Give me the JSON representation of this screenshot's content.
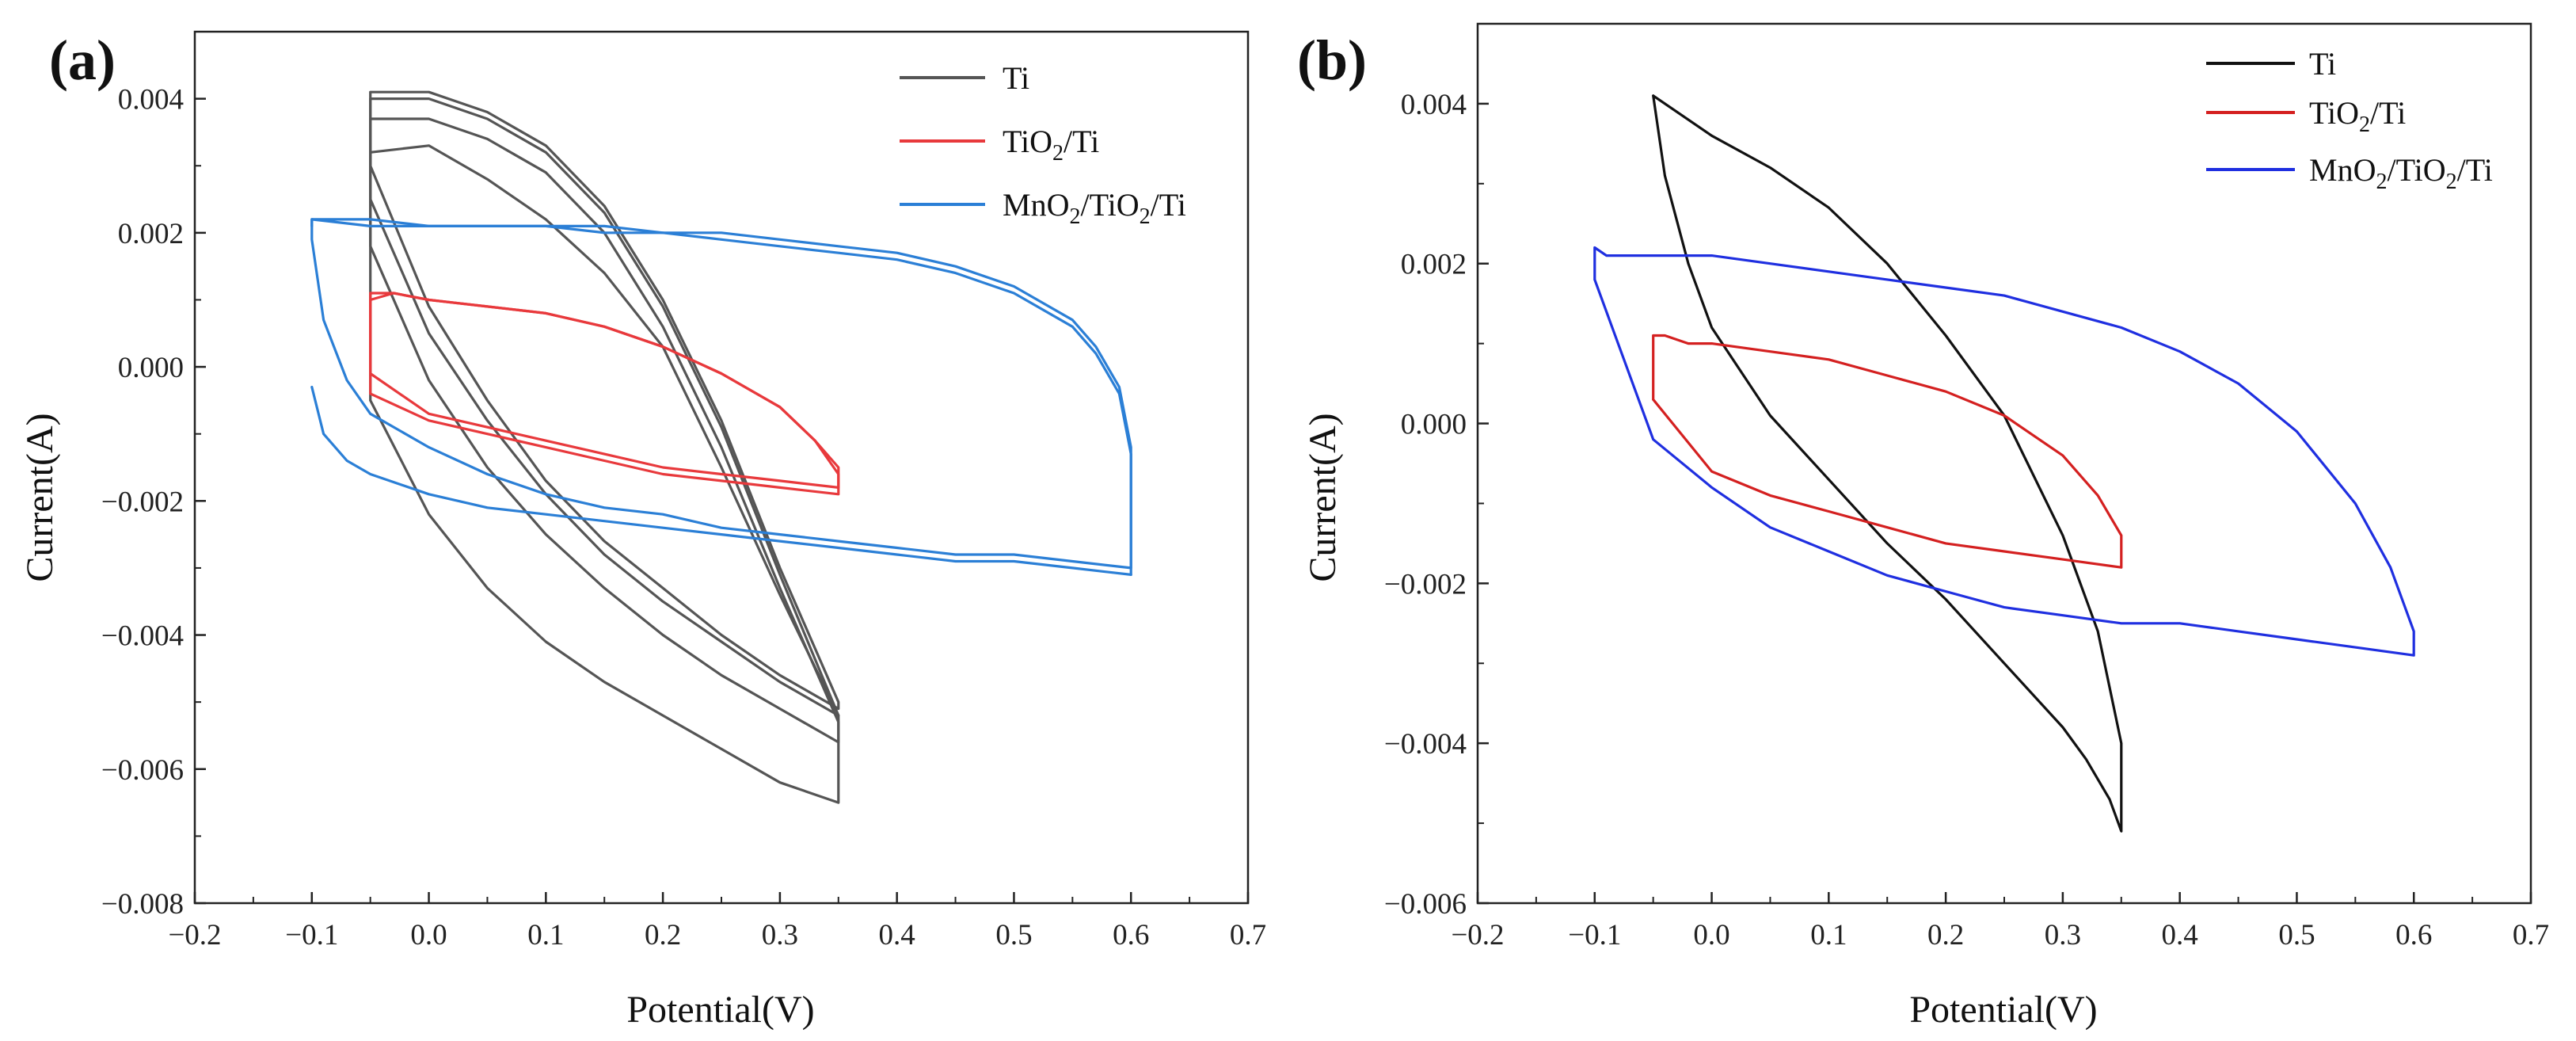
{
  "panels": [
    {
      "panel_label": "(a)",
      "legend": [
        {
          "main": "Ti",
          "sub": "",
          "after": "",
          "sub2": "",
          "after2": "",
          "color": "#555555"
        },
        {
          "main": "TiO",
          "sub": "2",
          "after": "/Ti",
          "sub2": "",
          "after2": "",
          "color": "#e8393c"
        },
        {
          "main": "MnO",
          "sub": "2",
          "after": "/TiO",
          "sub2": "2",
          "after2": "/Ti",
          "color": "#2b7fd6"
        }
      ]
    },
    {
      "panel_label": "(b)",
      "legend": [
        {
          "main": "Ti",
          "sub": "",
          "after": "",
          "sub2": "",
          "after2": "",
          "color": "#111111"
        },
        {
          "main": "TiO",
          "sub": "2",
          "after": "/Ti",
          "sub2": "",
          "after2": "",
          "color": "#d42020"
        },
        {
          "main": "MnO",
          "sub": "2",
          "after": "/TiO",
          "sub2": "2",
          "after2": "/Ti",
          "color": "#1f2fe0"
        }
      ]
    }
  ],
  "chart_data": [
    {
      "type": "line",
      "panel": "(a)",
      "xlabel": "Potential(V)",
      "ylabel": "Current(A)",
      "xlim": [
        -0.2,
        0.7
      ],
      "ylim": [
        -0.008,
        0.005
      ],
      "xticks": [
        -0.2,
        -0.1,
        0.0,
        0.1,
        0.2,
        0.3,
        0.4,
        0.5,
        0.6,
        0.7
      ],
      "xtick_labels": [
        "−0.2",
        "−0.1",
        "0.0",
        "0.1",
        "0.2",
        "0.3",
        "0.4",
        "0.5",
        "0.6",
        "0.7"
      ],
      "yticks": [
        -0.008,
        -0.006,
        -0.004,
        -0.002,
        0.0,
        0.002,
        0.004
      ],
      "ytick_labels": [
        "−0.008",
        "−0.006",
        "−0.004",
        "−0.002",
        "0.000",
        "0.002",
        "0.004"
      ],
      "legend_position": "top-right",
      "series": [
        {
          "name": "Ti",
          "color": "#555555",
          "cycles": [
            {
              "x": [
                -0.05,
                0.0,
                0.05,
                0.1,
                0.15,
                0.2,
                0.25,
                0.3,
                0.35,
                0.35,
                0.3,
                0.25,
                0.2,
                0.15,
                0.1,
                0.05,
                0.0,
                -0.05,
                -0.05
              ],
              "y": [
                -0.0005,
                -0.0022,
                -0.0033,
                -0.0041,
                -0.0047,
                -0.0052,
                -0.0057,
                -0.0062,
                -0.0065,
                -0.0052,
                -0.0034,
                -0.0015,
                0.0003,
                0.0014,
                0.0022,
                0.0028,
                0.0033,
                0.0032,
                -0.0005
              ]
            },
            {
              "x": [
                -0.05,
                0.0,
                0.05,
                0.1,
                0.15,
                0.2,
                0.25,
                0.3,
                0.35,
                0.35,
                0.3,
                0.25,
                0.2,
                0.15,
                0.1,
                0.05,
                0.0,
                -0.05,
                -0.05
              ],
              "y": [
                0.0018,
                -0.0002,
                -0.0015,
                -0.0025,
                -0.0033,
                -0.004,
                -0.0046,
                -0.0051,
                -0.0056,
                -0.0053,
                -0.0033,
                -0.0012,
                0.0006,
                0.002,
                0.0029,
                0.0034,
                0.0037,
                0.0037,
                0.0018
              ]
            },
            {
              "x": [
                -0.05,
                0.0,
                0.05,
                0.1,
                0.15,
                0.2,
                0.25,
                0.3,
                0.35,
                0.35,
                0.3,
                0.25,
                0.2,
                0.15,
                0.1,
                0.05,
                0.0,
                -0.05,
                -0.05
              ],
              "y": [
                0.0025,
                0.0005,
                -0.0008,
                -0.0019,
                -0.0028,
                -0.0035,
                -0.0041,
                -0.0047,
                -0.0052,
                -0.0052,
                -0.0031,
                -0.0009,
                0.0009,
                0.0023,
                0.0032,
                0.0037,
                0.004,
                0.004,
                0.0025
              ]
            },
            {
              "x": [
                -0.05,
                0.0,
                0.05,
                0.1,
                0.15,
                0.2,
                0.25,
                0.3,
                0.35,
                0.35,
                0.3,
                0.25,
                0.2,
                0.15,
                0.1,
                0.05,
                0.0,
                -0.05,
                -0.05
              ],
              "y": [
                0.003,
                0.0009,
                -0.0005,
                -0.0017,
                -0.0026,
                -0.0033,
                -0.004,
                -0.0046,
                -0.0051,
                -0.005,
                -0.003,
                -0.0008,
                0.001,
                0.0024,
                0.0033,
                0.0038,
                0.0041,
                0.0041,
                0.003
              ]
            }
          ]
        },
        {
          "name": "TiO2/Ti",
          "color": "#e8393c",
          "cycles": [
            {
              "x": [
                -0.05,
                -0.05,
                -0.03,
                0.0,
                0.05,
                0.1,
                0.15,
                0.2,
                0.25,
                0.3,
                0.33,
                0.35,
                0.35,
                0.3,
                0.25,
                0.2,
                0.15,
                0.1,
                0.05,
                0.0,
                -0.05
              ],
              "y": [
                -0.0004,
                0.001,
                0.0011,
                0.001,
                0.0009,
                0.0008,
                0.0006,
                0.0003,
                -0.0001,
                -0.0006,
                -0.0011,
                -0.0016,
                -0.0019,
                -0.0018,
                -0.0017,
                -0.0016,
                -0.0014,
                -0.0012,
                -0.001,
                -0.0008,
                -0.0004
              ]
            },
            {
              "x": [
                -0.05,
                -0.05,
                -0.03,
                0.0,
                0.05,
                0.1,
                0.15,
                0.2,
                0.25,
                0.3,
                0.33,
                0.35,
                0.35,
                0.3,
                0.25,
                0.2,
                0.15,
                0.1,
                0.05,
                0.0,
                -0.05
              ],
              "y": [
                -0.0001,
                0.0011,
                0.0011,
                0.001,
                0.0009,
                0.0008,
                0.0006,
                0.0003,
                -0.0001,
                -0.0006,
                -0.0011,
                -0.0015,
                -0.0018,
                -0.0017,
                -0.0016,
                -0.0015,
                -0.0013,
                -0.0011,
                -0.0009,
                -0.0007,
                -0.0001
              ]
            }
          ]
        },
        {
          "name": "MnO2/TiO2/Ti",
          "color": "#2b7fd6",
          "cycles": [
            {
              "x": [
                -0.1,
                -0.09,
                -0.07,
                -0.05,
                0.0,
                0.05,
                0.1,
                0.15,
                0.2,
                0.25,
                0.3,
                0.35,
                0.4,
                0.45,
                0.5,
                0.55,
                0.6
              ],
              "y": [
                -0.0003,
                -0.001,
                -0.0014,
                -0.0016,
                -0.0019,
                -0.0021,
                -0.0022,
                -0.0023,
                -0.0024,
                -0.0025,
                -0.0026,
                -0.0027,
                -0.0028,
                -0.0029,
                -0.0029,
                -0.003,
                -0.0031
              ]
            },
            {
              "x": [
                0.6,
                0.6,
                0.59,
                0.57,
                0.55,
                0.5,
                0.45,
                0.4,
                0.35,
                0.3,
                0.25,
                0.2,
                0.15,
                0.1,
                0.05,
                0.0,
                -0.05,
                -0.1,
                -0.1,
                -0.09,
                -0.07,
                -0.05,
                0.0,
                0.05,
                0.1,
                0.15,
                0.2,
                0.25,
                0.3,
                0.35,
                0.4,
                0.45,
                0.5,
                0.55,
                0.6
              ],
              "y": [
                -0.003,
                -0.0012,
                -0.0003,
                0.0003,
                0.0007,
                0.0012,
                0.0015,
                0.0017,
                0.0018,
                0.0019,
                0.002,
                0.002,
                0.0021,
                0.0021,
                0.0021,
                0.0021,
                0.0022,
                0.0022,
                0.0019,
                0.0007,
                -0.0002,
                -0.0007,
                -0.0012,
                -0.0016,
                -0.0019,
                -0.0021,
                -0.0022,
                -0.0024,
                -0.0025,
                -0.0026,
                -0.0027,
                -0.0028,
                -0.0028,
                -0.0029,
                -0.003
              ]
            },
            {
              "x": [
                0.6,
                0.6,
                0.59,
                0.57,
                0.55,
                0.5,
                0.45,
                0.4,
                0.35,
                0.3,
                0.25,
                0.2,
                0.15,
                0.1,
                0.05,
                0.0,
                -0.05,
                -0.1,
                -0.1
              ],
              "y": [
                -0.0031,
                -0.0013,
                -0.0004,
                0.0002,
                0.0006,
                0.0011,
                0.0014,
                0.0016,
                0.0017,
                0.0018,
                0.0019,
                0.002,
                0.002,
                0.0021,
                0.0021,
                0.0021,
                0.0021,
                0.0022,
                0.0021
              ]
            }
          ]
        }
      ]
    },
    {
      "type": "line",
      "panel": "(b)",
      "xlabel": "Potential(V)",
      "ylabel": "Current(A)",
      "xlim": [
        -0.2,
        0.7
      ],
      "ylim": [
        -0.006,
        0.005
      ],
      "xticks": [
        -0.2,
        -0.1,
        0.0,
        0.1,
        0.2,
        0.3,
        0.4,
        0.5,
        0.6,
        0.7
      ],
      "xtick_labels": [
        "−0.2",
        "−0.1",
        "0.0",
        "0.1",
        "0.2",
        "0.3",
        "0.4",
        "0.5",
        "0.6",
        "0.7"
      ],
      "yticks": [
        -0.006,
        -0.004,
        -0.002,
        0.0,
        0.002,
        0.004
      ],
      "ytick_labels": [
        "−0.006",
        "−0.004",
        "−0.002",
        "0.000",
        "0.002",
        "0.004"
      ],
      "legend_position": "top-right",
      "series": [
        {
          "name": "Ti",
          "color": "#111111",
          "cycles": [
            {
              "x": [
                -0.05,
                0.0,
                0.05,
                0.1,
                0.15,
                0.2,
                0.25,
                0.3,
                0.33,
                0.35,
                0.35,
                0.34,
                0.32,
                0.3,
                0.25,
                0.2,
                0.15,
                0.1,
                0.05,
                0.0,
                -0.02,
                -0.04,
                -0.05
              ],
              "y": [
                0.0041,
                0.0036,
                0.0032,
                0.0027,
                0.002,
                0.0011,
                0.0001,
                -0.0014,
                -0.0026,
                -0.004,
                -0.0051,
                -0.0047,
                -0.0042,
                -0.0038,
                -0.003,
                -0.0022,
                -0.0015,
                -0.0007,
                0.0001,
                0.0012,
                0.002,
                0.0031,
                0.0041
              ]
            }
          ]
        },
        {
          "name": "TiO2/Ti",
          "color": "#d42020",
          "cycles": [
            {
              "x": [
                -0.05,
                -0.05,
                -0.04,
                -0.02,
                0.0,
                0.05,
                0.1,
                0.15,
                0.2,
                0.25,
                0.3,
                0.33,
                0.35,
                0.35,
                0.3,
                0.25,
                0.2,
                0.15,
                0.1,
                0.05,
                0.0,
                -0.05
              ],
              "y": [
                0.0003,
                0.0011,
                0.0011,
                0.001,
                0.001,
                0.0009,
                0.0008,
                0.0006,
                0.0004,
                0.0001,
                -0.0004,
                -0.0009,
                -0.0014,
                -0.0018,
                -0.0017,
                -0.0016,
                -0.0015,
                -0.0013,
                -0.0011,
                -0.0009,
                -0.0006,
                0.0003
              ]
            }
          ]
        },
        {
          "name": "MnO2/TiO2/Ti",
          "color": "#1f2fe0",
          "cycles": [
            {
              "x": [
                -0.1,
                -0.1,
                -0.09,
                -0.07,
                -0.05,
                0.0,
                0.05,
                0.1,
                0.15,
                0.2,
                0.25,
                0.3,
                0.35,
                0.4,
                0.45,
                0.5,
                0.55,
                0.58,
                0.6,
                0.6,
                0.55,
                0.5,
                0.45,
                0.4,
                0.35,
                0.3,
                0.25,
                0.2,
                0.15,
                0.1,
                0.05,
                0.0,
                -0.05,
                -0.1
              ],
              "y": [
                0.0018,
                0.0022,
                0.0021,
                0.0021,
                0.0021,
                0.0021,
                0.002,
                0.0019,
                0.0018,
                0.0017,
                0.0016,
                0.0014,
                0.0012,
                0.0009,
                0.0005,
                -0.0001,
                -0.001,
                -0.0018,
                -0.0026,
                -0.0029,
                -0.0028,
                -0.0027,
                -0.0026,
                -0.0025,
                -0.0025,
                -0.0024,
                -0.0023,
                -0.0021,
                -0.0019,
                -0.0016,
                -0.0013,
                -0.0008,
                -0.0002,
                0.0018
              ]
            }
          ]
        }
      ]
    }
  ]
}
